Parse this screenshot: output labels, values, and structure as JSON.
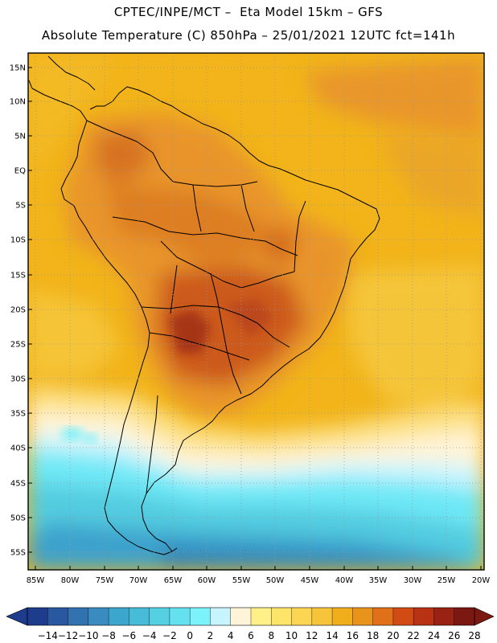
{
  "header": {
    "line1": "CPTEC/INPE/MCT –  Eta Model 15km – GFS",
    "line2": "Absolute Temperature (C) 850hPa – 25/01/2021 12UTC fct=141h"
  },
  "map": {
    "lat_labels": [
      "15N",
      "10N",
      "5N",
      "EQ",
      "5S",
      "10S",
      "15S",
      "20S",
      "25S",
      "30S",
      "35S",
      "40S",
      "45S",
      "50S",
      "55S"
    ],
    "lon_labels": [
      "85W",
      "80W",
      "75W",
      "70W",
      "65W",
      "60W",
      "55W",
      "50W",
      "45W",
      "40W",
      "35W",
      "30W",
      "25W",
      "20W"
    ],
    "colors": {
      "ocean_warm": "#f2b41a",
      "land_hot": "#e8962a",
      "core_hot": "#c8521a",
      "cold_ocean": "#5ce0f0",
      "deep_cold": "#3a8fc8"
    }
  },
  "colorbar": {
    "labels": [
      "-14",
      "-12",
      "-10",
      "-8",
      "-6",
      "-4",
      "-2",
      "0",
      "2",
      "4",
      "6",
      "8",
      "10",
      "12",
      "14",
      "16",
      "18",
      "20",
      "22",
      "24",
      "26",
      "28"
    ],
    "colors": [
      "#1e3c8c",
      "#2a58a0",
      "#3272b0",
      "#3a8cc0",
      "#3ca6cc",
      "#46bcd8",
      "#54d0e2",
      "#64e0ee",
      "#7cf2fa",
      "#c8f4ff",
      "#fff4d8",
      "#fff088",
      "#fee468",
      "#fcd652",
      "#f6c43a",
      "#f0ae1c",
      "#e8941a",
      "#e0701a",
      "#d24a14",
      "#b83214",
      "#982214",
      "#7c1812"
    ]
  }
}
